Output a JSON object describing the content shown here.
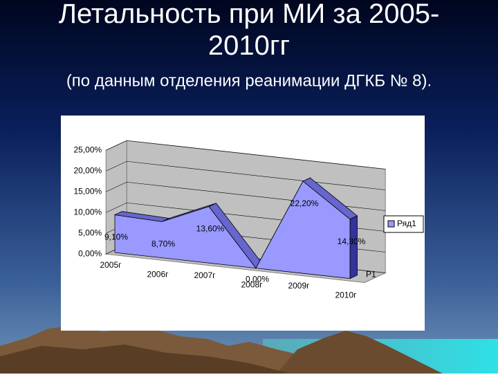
{
  "chart_data": {
    "type": "area3d",
    "title": "Летальность при МИ за 2005-2010гг",
    "subtitle": "(по данным отделения реанимации ДГКБ № 8).",
    "categories": [
      "2005г",
      "2006г",
      "2007г",
      "2008г",
      "2009г",
      "2010г"
    ],
    "series": [
      {
        "name": "Ряд1",
        "color": "#9999ff",
        "values": [
          9.1,
          8.7,
          13.6,
          0,
          22.2,
          14.3
        ],
        "value_labels": [
          "9,10%",
          "8,70%",
          "13,60%",
          "0,00%",
          "22,20%",
          "14,30%"
        ]
      }
    ],
    "series_axis_labels": [
      "Р1"
    ],
    "ylim": [
      0,
      25
    ],
    "yticks": [
      {
        "value": 0,
        "label": "0,00%"
      },
      {
        "value": 5,
        "label": "5,00%"
      },
      {
        "value": 10,
        "label": "10,00%"
      },
      {
        "value": 15,
        "label": "15,00%"
      },
      {
        "value": 20,
        "label": "20,00%"
      },
      {
        "value": 25,
        "label": "25,00%"
      }
    ],
    "grid": true,
    "legend": "right"
  }
}
